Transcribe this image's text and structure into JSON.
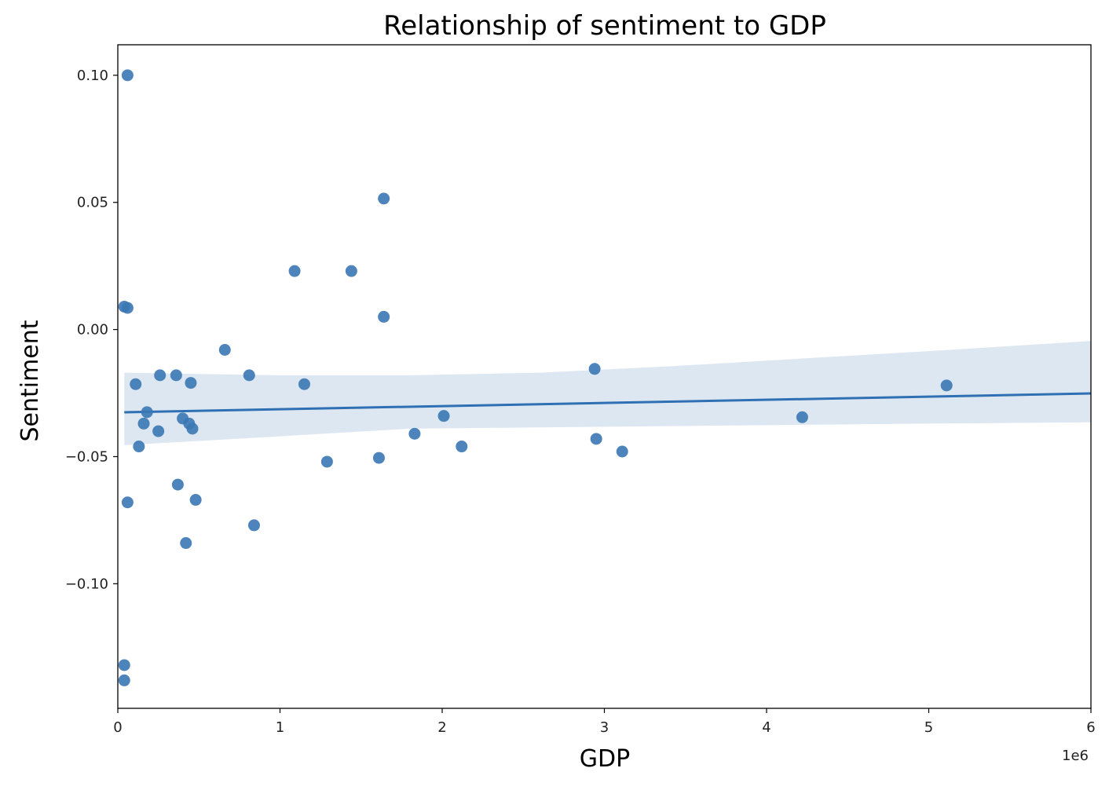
{
  "chart_data": {
    "type": "scatter",
    "title": "Relationship of sentiment to GDP",
    "xlabel": "GDP",
    "ylabel": "Sentiment",
    "x_offset_label": "1e6",
    "xlim": [
      0,
      6000000
    ],
    "ylim": [
      -0.149,
      0.112
    ],
    "x_ticks": [
      {
        "value": 0,
        "label": "0"
      },
      {
        "value": 1000000,
        "label": "1"
      },
      {
        "value": 2000000,
        "label": "2"
      },
      {
        "value": 3000000,
        "label": "3"
      },
      {
        "value": 4000000,
        "label": "4"
      },
      {
        "value": 5000000,
        "label": "5"
      },
      {
        "value": 6000000,
        "label": "6"
      }
    ],
    "y_ticks": [
      {
        "value": 0.1,
        "label": "0.10"
      },
      {
        "value": 0.05,
        "label": "0.05"
      },
      {
        "value": 0.0,
        "label": "0.00"
      },
      {
        "value": -0.05,
        "label": "−0.05"
      },
      {
        "value": -0.1,
        "label": "−0.10"
      }
    ],
    "grid": false,
    "colors": {
      "points": "#3a77b4",
      "line": "#2f6fb3",
      "band": "#dde7f1"
    },
    "points": [
      {
        "x": 60000,
        "y": 0.1
      },
      {
        "x": 40000,
        "y": 0.009
      },
      {
        "x": 60000,
        "y": 0.0085
      },
      {
        "x": 60000,
        "y": -0.068
      },
      {
        "x": 40000,
        "y": -0.132
      },
      {
        "x": 40000,
        "y": -0.138
      },
      {
        "x": 110000,
        "y": -0.0215
      },
      {
        "x": 130000,
        "y": -0.046
      },
      {
        "x": 160000,
        "y": -0.037
      },
      {
        "x": 180000,
        "y": -0.0325
      },
      {
        "x": 250000,
        "y": -0.04
      },
      {
        "x": 260000,
        "y": -0.018
      },
      {
        "x": 360000,
        "y": -0.018
      },
      {
        "x": 370000,
        "y": -0.061
      },
      {
        "x": 400000,
        "y": -0.035
      },
      {
        "x": 420000,
        "y": -0.084
      },
      {
        "x": 440000,
        "y": -0.037
      },
      {
        "x": 450000,
        "y": -0.021
      },
      {
        "x": 460000,
        "y": -0.039
      },
      {
        "x": 480000,
        "y": -0.067
      },
      {
        "x": 660000,
        "y": -0.008
      },
      {
        "x": 810000,
        "y": -0.018
      },
      {
        "x": 840000,
        "y": -0.077
      },
      {
        "x": 1090000,
        "y": 0.023
      },
      {
        "x": 1150000,
        "y": -0.0215
      },
      {
        "x": 1290000,
        "y": -0.052
      },
      {
        "x": 1440000,
        "y": 0.023
      },
      {
        "x": 1610000,
        "y": -0.0505
      },
      {
        "x": 1640000,
        "y": 0.0515
      },
      {
        "x": 1640000,
        "y": 0.005
      },
      {
        "x": 1830000,
        "y": -0.041
      },
      {
        "x": 2010000,
        "y": -0.034
      },
      {
        "x": 2120000,
        "y": -0.046
      },
      {
        "x": 2940000,
        "y": -0.0155
      },
      {
        "x": 2950000,
        "y": -0.043
      },
      {
        "x": 3110000,
        "y": -0.048
      },
      {
        "x": 4220000,
        "y": -0.0345
      },
      {
        "x": 5110000,
        "y": -0.022
      }
    ],
    "regression": {
      "x_range": [
        40000,
        6000000
      ],
      "intercept": -0.0326,
      "slope": 1.24e-09
    },
    "confidence_band": [
      {
        "x": 40000,
        "lower": -0.0455,
        "upper": -0.017
      },
      {
        "x": 1000000,
        "lower": -0.042,
        "upper": -0.018
      },
      {
        "x": 1800000,
        "lower": -0.039,
        "upper": -0.018
      },
      {
        "x": 2600000,
        "lower": -0.0385,
        "upper": -0.017
      },
      {
        "x": 3400000,
        "lower": -0.038,
        "upper": -0.0145
      },
      {
        "x": 4200000,
        "lower": -0.0375,
        "upper": -0.0115
      },
      {
        "x": 5000000,
        "lower": -0.037,
        "upper": -0.0085
      },
      {
        "x": 6000000,
        "lower": -0.0365,
        "upper": -0.0045
      }
    ]
  }
}
